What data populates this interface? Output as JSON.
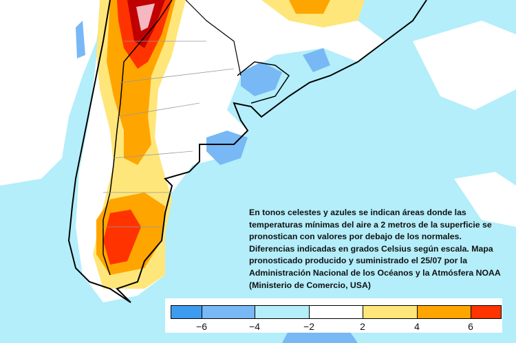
{
  "caption": "En tonos celestes y azules se indican áreas donde las temperaturas mínimas del aire a 2 metros de la superficie se pronostican con valores por debajo de los normales. Diferencias indicadas en grados Celsius según escala. Mapa pronosticado producido y suministrado el 25/07 por la Administración Nacional de los Océanos y la Atmósfera NOAA (Ministerio de Comercio, USA)",
  "legend": {
    "unit": "°C",
    "colors": [
      "#3d9bf0",
      "#78b8f5",
      "#b3eefa",
      "#ffffff",
      "#ffe67a",
      "#ffa500",
      "#ff3300"
    ],
    "ticks": [
      "−6",
      "−4",
      "−2",
      "2",
      "4",
      "6"
    ]
  },
  "map_colors": {
    "below_6": "#3d9bf0",
    "below_4": "#78b8f5",
    "below_2": "#b3eefa",
    "neutral": "#ffffff",
    "above_2": "#ffe67a",
    "above_4": "#ffa500",
    "above_6": "#ff3300",
    "above_8": "#c00000"
  }
}
